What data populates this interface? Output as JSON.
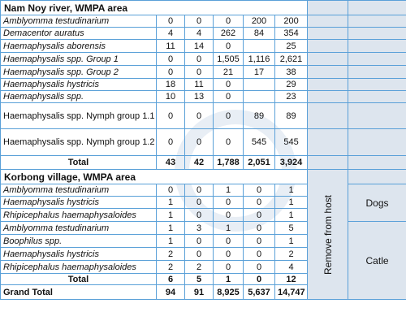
{
  "section1": {
    "title": "Nam Noy river,  WMPA area",
    "rows": [
      {
        "species": "Amblyomma testudinarium",
        "c1": "0",
        "c2": "0",
        "c3": "0",
        "c4": "200",
        "c5": "200"
      },
      {
        "species": "Demacentor auratus",
        "c1": "4",
        "c2": "4",
        "c3": "262",
        "c4": "84",
        "c5": "354"
      },
      {
        "species": "Haemaphysalis aborensis",
        "c1": "11",
        "c2": "14",
        "c3": "0",
        "c4": "",
        "c5": "25"
      },
      {
        "species": "Haemaphysalis spp. Group 1",
        "c1": "0",
        "c2": "0",
        "c3": "1,505",
        "c4": "1,116",
        "c5": "2,621"
      },
      {
        "species": "Haemaphysalis spp. Group 2",
        "c1": "0",
        "c2": "0",
        "c3": "21",
        "c4": "17",
        "c5": "38"
      },
      {
        "species": "Haemaphysalis hystricis",
        "c1": "18",
        "c2": "11",
        "c3": "0",
        "c4": "",
        "c5": "29"
      },
      {
        "species": "Haemaphysalis spp.",
        "c1": "10",
        "c2": "13",
        "c3": "0",
        "c4": "",
        "c5": "23"
      },
      {
        "species": "Haemaphysalis spp. Nymph group 1.1",
        "c1": "0",
        "c2": "0",
        "c3": "0",
        "c4": "89",
        "c5": "89"
      },
      {
        "species": "Haemaphysalis spp. Nymph group 1.2",
        "c1": "0",
        "c2": "0",
        "c3": "0",
        "c4": "545",
        "c5": "545"
      }
    ],
    "total": {
      "label": "Total",
      "c1": "43",
      "c2": "42",
      "c3": "1,788",
      "c4": "2,051",
      "c5": "3,924"
    }
  },
  "section2": {
    "title": "Korbong village, WMPA area",
    "rows": [
      {
        "species": "Amblyomma testudinarium",
        "c1": "0",
        "c2": "0",
        "c3": "1",
        "c4": "0",
        "c5": "1"
      },
      {
        "species": "Haemaphysalis hystricis",
        "c1": "1",
        "c2": "0",
        "c3": "0",
        "c4": "0",
        "c5": "1"
      },
      {
        "species": "Rhipicephalus haemaphysaloides",
        "c1": "1",
        "c2": "0",
        "c3": "0",
        "c4": "0",
        "c5": "1"
      },
      {
        "species": "Amblyomma testudinarium",
        "c1": "1",
        "c2": "3",
        "c3": "1",
        "c4": "0",
        "c5": "5"
      },
      {
        "species": "Boophilus spp.",
        "c1": "1",
        "c2": "0",
        "c3": "0",
        "c4": "0",
        "c5": "1"
      },
      {
        "species": "Haemaphysalis hystricis",
        "c1": "2",
        "c2": "0",
        "c3": "0",
        "c4": "0",
        "c5": "2"
      },
      {
        "species": "Rhipicephalus haemaphysaloides",
        "c1": "2",
        "c2": "2",
        "c3": "0",
        "c4": "0",
        "c5": "4"
      }
    ],
    "total": {
      "label": "Total",
      "c1": "6",
      "c2": "5",
      "c3": "1",
      "c4": "0",
      "c5": "12"
    }
  },
  "grand_total": {
    "label": "Grand Total",
    "c1": "94",
    "c2": "91",
    "c3": "8,925",
    "c4": "5,637",
    "c5": "14,747"
  },
  "side": {
    "method": "Remove from host",
    "host1": "Dogs",
    "host2": "Catle"
  }
}
